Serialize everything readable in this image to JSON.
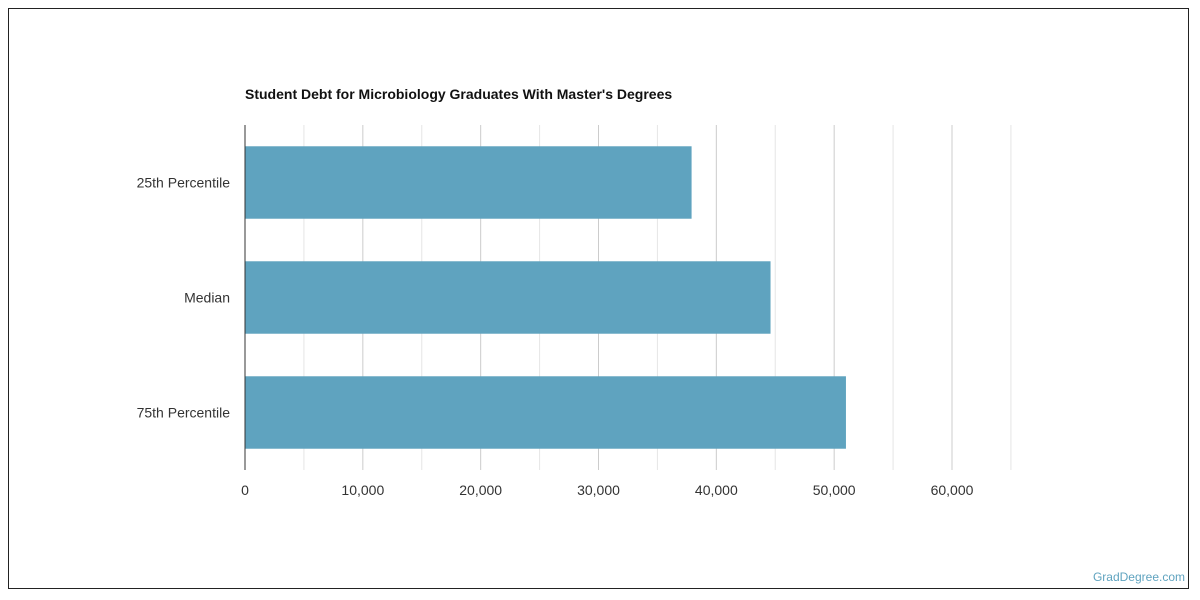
{
  "chart_data": {
    "type": "bar",
    "orientation": "horizontal",
    "title": "Student Debt for Microbiology Graduates With Master's Degrees",
    "categories": [
      "25th Percentile",
      "Median",
      "75th Percentile"
    ],
    "values": [
      37900,
      44600,
      51000
    ],
    "xlim": [
      0,
      65000
    ],
    "ticks": [
      0,
      10000,
      20000,
      30000,
      40000,
      50000,
      60000
    ],
    "tick_labels": [
      "0",
      "10,000",
      "20,000",
      "30,000",
      "40,000",
      "50,000",
      "60,000"
    ],
    "bar_color": "#5fa3bf",
    "grid": true
  },
  "watermark": "GradDegree.com"
}
